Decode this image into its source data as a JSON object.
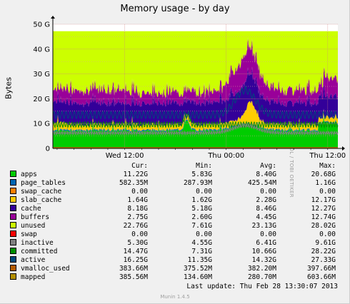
{
  "chart_data": {
    "type": "area",
    "title": "Memory usage - by day",
    "ylabel": "Bytes",
    "xlabel": "",
    "ylim": [
      0,
      50
    ],
    "yticks": [
      "0",
      "10 G",
      "20 G",
      "30 G",
      "40 G",
      "50 G"
    ],
    "xticks": [
      "Wed 12:00",
      "Thu 00:00",
      "Thu 12:00"
    ],
    "xtick_hours": [
      12,
      24,
      36
    ],
    "x_range_hours": [
      3.5,
      37.2
    ],
    "stack_order": [
      "apps",
      "page_tables",
      "swap_cache",
      "slab_cache",
      "cache",
      "buffers",
      "unused",
      "swap"
    ],
    "lines": [
      "inactive",
      "committed",
      "active",
      "vmalloc_used",
      "mapped"
    ],
    "series": [
      {
        "name": "apps",
        "color": "#00cc00",
        "cur": "11.22G",
        "min": "5.83G",
        "avg": "8.40G",
        "max": "20.68G"
      },
      {
        "name": "page_tables",
        "color": "#0066b3",
        "cur": "582.35M",
        "min": "287.93M",
        "avg": "425.54M",
        "max": "1.16G"
      },
      {
        "name": "swap_cache",
        "color": "#ff8000",
        "cur": "0.00",
        "min": "0.00",
        "avg": "0.00",
        "max": "0.00"
      },
      {
        "name": "slab_cache",
        "color": "#ffcc00",
        "cur": "1.64G",
        "min": "1.62G",
        "avg": "2.28G",
        "max": "12.17G"
      },
      {
        "name": "cache",
        "color": "#330099",
        "cur": "8.18G",
        "min": "5.18G",
        "avg": "8.46G",
        "max": "12.27G"
      },
      {
        "name": "buffers",
        "color": "#990099",
        "cur": "2.75G",
        "min": "2.60G",
        "avg": "4.45G",
        "max": "12.74G"
      },
      {
        "name": "unused",
        "color": "#ccff00",
        "cur": "22.76G",
        "min": "7.61G",
        "avg": "23.13G",
        "max": "28.02G"
      },
      {
        "name": "swap",
        "color": "#ff0000",
        "cur": "0.00",
        "min": "0.00",
        "avg": "0.00",
        "max": "0.00"
      },
      {
        "name": "inactive",
        "color": "#808080",
        "cur": "5.30G",
        "min": "4.55G",
        "avg": "6.41G",
        "max": "9.61G"
      },
      {
        "name": "committed",
        "color": "#008f00",
        "cur": "14.47G",
        "min": "7.31G",
        "avg": "10.66G",
        "max": "28.22G"
      },
      {
        "name": "active",
        "color": "#00487d",
        "cur": "16.25G",
        "min": "11.35G",
        "avg": "14.32G",
        "max": "27.33G"
      },
      {
        "name": "vmalloc_used",
        "color": "#b35a00",
        "cur": "383.66M",
        "min": "375.52M",
        "avg": "382.20M",
        "max": "397.66M"
      },
      {
        "name": "mapped",
        "color": "#b38f00",
        "cur": "385.56M",
        "min": "134.60M",
        "avg": "280.70M",
        "max": "603.66M"
      }
    ]
  },
  "legend_headers": {
    "cur": "Cur:",
    "min": "Min:",
    "avg": "Avg:",
    "max": "Max:"
  },
  "last_update": "Last update:  Thu Feb 28 13:30:07 2013",
  "watermark": "RRDTOOL / TOBI OETIKER",
  "footer": "Munin 1.4.5"
}
